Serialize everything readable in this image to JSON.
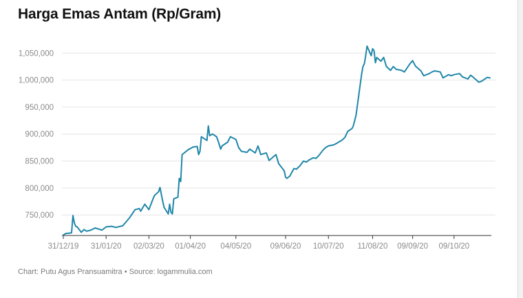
{
  "title": "Harga Emas Antam (Rp/Gram)",
  "footer": "Chart: Putu Agus Pransuamitra • Source: logammulia.com",
  "colors": {
    "line": "#1f86a8",
    "grid": "#e4e4e4",
    "axis": "#333333",
    "tick_text": "#8a8a8a"
  },
  "chart_data": {
    "type": "line",
    "title": "Harga Emas Antam (Rp/Gram)",
    "xlabel": "",
    "ylabel": "",
    "grid": true,
    "ylim": [
      712000,
      1072000
    ],
    "xlim": [
      "2019-12-31",
      "2020-11-04"
    ],
    "y_ticks": [
      750000,
      800000,
      850000,
      900000,
      950000,
      1000000,
      1050000
    ],
    "y_tick_labels": [
      "750,000",
      "800,000",
      "850,000",
      "900,000",
      "950,000",
      "1,000,000",
      "1,050,000"
    ],
    "x_ticks": [
      "2019-12-31",
      "2020-01-31",
      "2020-03-02",
      "2020-04-01",
      "2020-05-04",
      "2020-06-09",
      "2020-07-10",
      "2020-08-11",
      "2020-09-09",
      "2020-10-09"
    ],
    "x_tick_labels": [
      "31/12/19",
      "31/01/20",
      "02/03/20",
      "01/04/20",
      "04/05/20",
      "09/06/20",
      "10/07/20",
      "11/08/20",
      "09/09/20",
      "09/10/20"
    ],
    "series": [
      {
        "x": [
          "2019-12-31",
          "2020-01-02",
          "2020-01-03",
          "2020-01-06",
          "2020-01-07",
          "2020-01-08",
          "2020-01-09",
          "2020-01-10",
          "2020-01-13",
          "2020-01-15",
          "2020-01-17",
          "2020-01-20",
          "2020-01-23",
          "2020-01-28",
          "2020-01-31",
          "2020-02-04",
          "2020-02-07",
          "2020-02-12",
          "2020-02-17",
          "2020-02-21",
          "2020-02-24",
          "2020-02-25",
          "2020-02-28",
          "2020-03-02",
          "2020-03-05",
          "2020-03-06",
          "2020-03-09",
          "2020-03-10",
          "2020-03-12",
          "2020-03-13",
          "2020-03-16",
          "2020-03-17",
          "2020-03-18",
          "2020-03-19",
          "2020-03-20",
          "2020-03-23",
          "2020-03-24",
          "2020-03-25",
          "2020-03-26",
          "2020-03-31",
          "2020-04-01",
          "2020-04-03",
          "2020-04-06",
          "2020-04-07",
          "2020-04-08",
          "2020-04-09",
          "2020-04-13",
          "2020-04-14",
          "2020-04-15",
          "2020-04-17",
          "2020-04-20",
          "2020-04-21",
          "2020-04-23",
          "2020-04-24",
          "2020-04-28",
          "2020-04-30",
          "2020-05-04",
          "2020-05-06",
          "2020-05-08",
          "2020-05-12",
          "2020-05-14",
          "2020-05-18",
          "2020-05-20",
          "2020-05-22",
          "2020-05-26",
          "2020-05-28",
          "2020-06-02",
          "2020-06-04",
          "2020-06-08",
          "2020-06-09",
          "2020-06-10",
          "2020-06-12",
          "2020-06-15",
          "2020-06-17",
          "2020-06-18",
          "2020-06-19",
          "2020-06-22",
          "2020-06-24",
          "2020-06-26",
          "2020-06-29",
          "2020-07-01",
          "2020-07-03",
          "2020-07-06",
          "2020-07-08",
          "2020-07-10",
          "2020-07-14",
          "2020-07-16",
          "2020-07-20",
          "2020-07-22",
          "2020-07-24",
          "2020-07-27",
          "2020-07-28",
          "2020-07-29",
          "2020-07-30",
          "2020-08-03",
          "2020-08-04",
          "2020-08-05",
          "2020-08-06",
          "2020-08-07",
          "2020-08-10",
          "2020-08-11",
          "2020-08-12",
          "2020-08-13",
          "2020-08-14",
          "2020-08-17",
          "2020-08-19",
          "2020-08-21",
          "2020-08-24",
          "2020-08-26",
          "2020-08-28",
          "2020-09-01",
          "2020-09-03",
          "2020-09-07",
          "2020-09-09",
          "2020-09-11",
          "2020-09-15",
          "2020-09-17",
          "2020-09-21",
          "2020-09-23",
          "2020-09-25",
          "2020-09-29",
          "2020-10-01",
          "2020-10-05",
          "2020-10-07",
          "2020-10-09",
          "2020-10-13",
          "2020-10-15",
          "2020-10-19",
          "2020-10-21",
          "2020-10-23",
          "2020-10-27",
          "2020-10-29",
          "2020-11-02",
          "2020-11-04"
        ],
        "y": [
          713000,
          716000,
          716000,
          717000,
          749000,
          735000,
          729000,
          728000,
          718000,
          723000,
          720000,
          722000,
          726000,
          722000,
          728000,
          729000,
          727000,
          730000,
          745000,
          760000,
          762000,
          757000,
          770000,
          760000,
          780000,
          786000,
          793000,
          801000,
          775000,
          764000,
          752000,
          770000,
          755000,
          752000,
          780000,
          783000,
          818000,
          812000,
          862000,
          872000,
          873000,
          876000,
          877000,
          862000,
          868000,
          895000,
          888000,
          915000,
          897000,
          900000,
          895000,
          888000,
          872000,
          878000,
          885000,
          895000,
          890000,
          875000,
          868000,
          866000,
          872000,
          865000,
          878000,
          862000,
          865000,
          851000,
          862000,
          845000,
          832000,
          820000,
          818000,
          822000,
          836000,
          835000,
          838000,
          840000,
          850000,
          848000,
          852000,
          856000,
          855000,
          860000,
          870000,
          875000,
          878000,
          880000,
          883000,
          889000,
          894000,
          905000,
          910000,
          915000,
          925000,
          935000,
          1010000,
          1025000,
          1030000,
          1045000,
          1063000,
          1045000,
          1058000,
          1055000,
          1032000,
          1042000,
          1035000,
          1042000,
          1025000,
          1018000,
          1025000,
          1020000,
          1018000,
          1015000,
          1030000,
          1036000,
          1026000,
          1017000,
          1008000,
          1012000,
          1015000,
          1017000,
          1015000,
          1004000,
          1010000,
          1008000,
          1010000,
          1012000,
          1006000,
          1002000,
          1009000,
          1005000,
          996000,
          998000,
          1005000,
          1004000
        ],
        "color": "#1f86a8"
      }
    ]
  }
}
